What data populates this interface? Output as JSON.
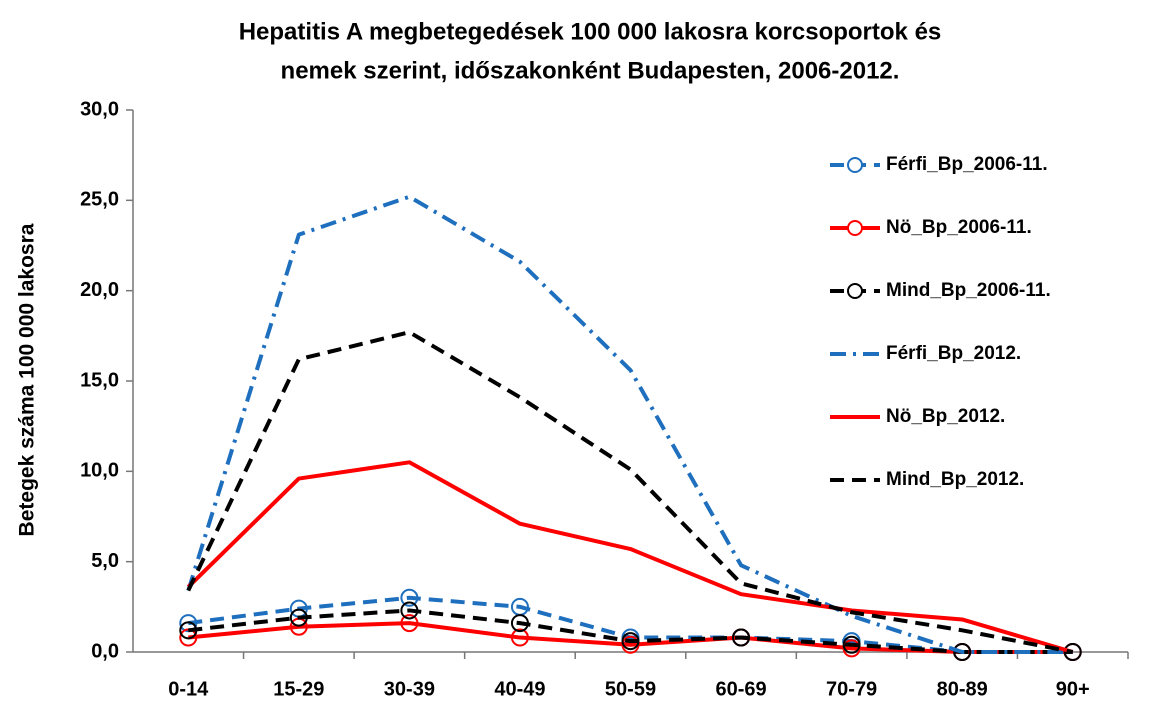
{
  "chart_data": {
    "type": "line",
    "title": [
      "Hepatitis A megbetegedések 100 000 lakosra korcsoportok és",
      "nemek szerint, időszakonként Budapesten, 2006-2012."
    ],
    "y_label": "Betegek száma 100 000 lakosra",
    "categories": [
      "0-14",
      "15-29",
      "30-39",
      "40-49",
      "50-59",
      "60-69",
      "70-79",
      "80-89",
      "90+"
    ],
    "series": [
      {
        "name": "Férfi_Bp_2006-11.",
        "color": "#1f6fbf",
        "dash": "dashed",
        "marker": "circle",
        "values": [
          1.6,
          2.4,
          3.0,
          2.5,
          0.8,
          0.8,
          0.6,
          0.0,
          0.0
        ]
      },
      {
        "name": "Nö_Bp_2006-11.",
        "color": "#ff0000",
        "dash": "solid",
        "marker": "circle",
        "values": [
          0.8,
          1.4,
          1.6,
          0.8,
          0.4,
          0.8,
          0.2,
          0.0,
          0.0
        ]
      },
      {
        "name": "Mind_Bp_2006-11.",
        "color": "#000000",
        "dash": "dashed",
        "marker": "circle",
        "values": [
          1.2,
          1.9,
          2.3,
          1.6,
          0.6,
          0.8,
          0.4,
          0.0,
          0.0
        ]
      },
      {
        "name": "Férfi_Bp_2012.",
        "color": "#1f6fbf",
        "dash": "dashdot",
        "marker": "none",
        "values": [
          3.4,
          23.1,
          25.2,
          21.6,
          15.6,
          4.8,
          2.0,
          0.0,
          0.0
        ]
      },
      {
        "name": "Nö_Bp_2012.",
        "color": "#ff0000",
        "dash": "solid",
        "marker": "none",
        "values": [
          3.6,
          9.6,
          10.5,
          7.1,
          5.7,
          3.2,
          2.3,
          1.8,
          0.0
        ]
      },
      {
        "name": "Mind_Bp_2012.",
        "color": "#000000",
        "dash": "dashed",
        "marker": "none",
        "values": [
          3.4,
          16.2,
          17.7,
          14.1,
          10.1,
          3.8,
          2.2,
          1.2,
          0.0
        ]
      }
    ],
    "ylim": [
      0,
      30
    ],
    "yticks": [
      {
        "value": 0,
        "label": "0,0"
      },
      {
        "value": 5,
        "label": "5,0"
      },
      {
        "value": 10,
        "label": "10,0"
      },
      {
        "value": 15,
        "label": "15,0"
      },
      {
        "value": 20,
        "label": "20,0"
      },
      {
        "value": 25,
        "label": "25,0"
      },
      {
        "value": 30,
        "label": "30,0"
      }
    ],
    "grid": false,
    "legend": "right"
  }
}
